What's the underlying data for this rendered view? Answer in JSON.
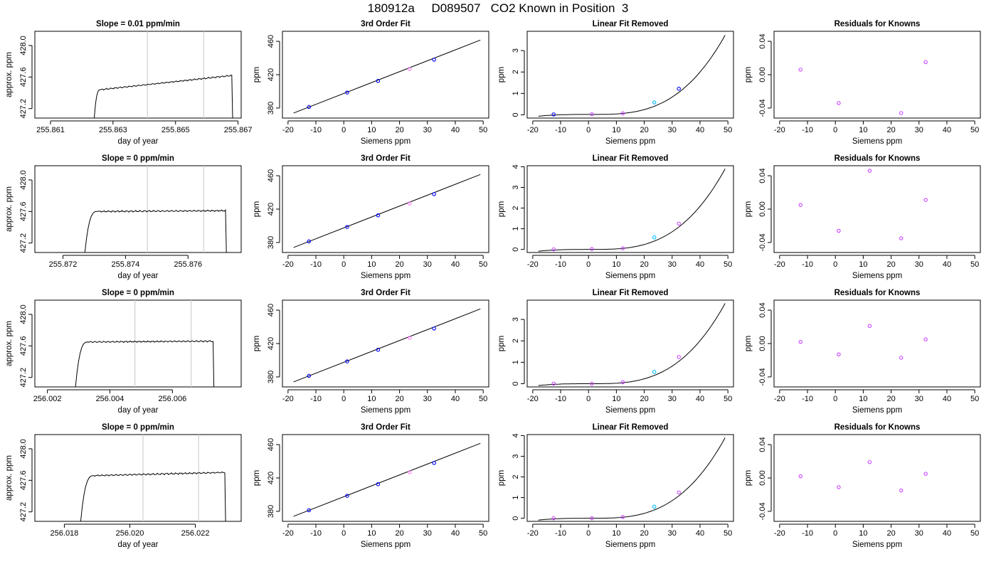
{
  "title": "180912a     D089507   CO2 Known in Position  3",
  "colors": {
    "trace": "#000000",
    "refline": "#cfcfcf",
    "point_main": "#0000ff",
    "point_alt": "#cc44ff",
    "point_pink": "#ff77ff",
    "point_cyan": "#00bbff"
  },
  "chart_data": [
    {
      "row": 1,
      "panel": "timeseries",
      "type": "line",
      "title": "Slope =  0.01  ppm/min",
      "xlabel": "day of year",
      "ylabel": "approx. ppm",
      "xlim": [
        255.8605,
        255.8671
      ],
      "ylim": [
        427.08,
        428.18
      ],
      "xticks": [
        255.861,
        255.863,
        255.865,
        255.867
      ],
      "xtick_labels": [
        "255.861",
        "255.863",
        "255.865",
        "255.867"
      ],
      "yticks": [
        427.2,
        427.6,
        428.0
      ],
      "ytick_labels": [
        "427.2",
        "427.6",
        "428.0"
      ],
      "vlines": [
        255.8641,
        255.8659
      ],
      "x_start": 255.8624,
      "x_plateau": 255.8626,
      "x_end": 255.8668,
      "plateau_start": 427.44,
      "plateau_end": 427.62,
      "plateau_noise": 0.01,
      "start_value": 427.08,
      "end_value": 427.08
    },
    {
      "row": 1,
      "panel": "fit",
      "type": "scatter",
      "title": "3rd Order Fit",
      "xlabel": "Siemens ppm",
      "ylabel": "ppm",
      "xlim": [
        -22,
        52
      ],
      "ylim": [
        368,
        472
      ],
      "xticks": [
        -20,
        -10,
        0,
        10,
        20,
        30,
        40,
        50
      ],
      "xtick_labels": [
        "-20",
        "-10",
        "0",
        "10",
        "20",
        "30",
        "40",
        "50"
      ],
      "yticks": [
        380,
        420,
        460
      ],
      "ytick_labels": [
        "380",
        "420",
        "460"
      ],
      "x": [
        -12.5,
        1.2,
        12.3,
        23.6,
        32.4
      ],
      "y": [
        381.3,
        398.6,
        412.5,
        426.9,
        438.0
      ],
      "point_colors": [
        "#0000ff",
        "#0000ff",
        "#0000ff",
        "#ff77ff",
        "#0000ff"
      ],
      "fit_line": {
        "x": [
          -18,
          49
        ],
        "y": [
          374.0,
          461.5
        ]
      }
    },
    {
      "row": 1,
      "panel": "linear_removed",
      "type": "scatter",
      "title": "Linear Fit Removed",
      "xlabel": "Siemens ppm",
      "ylabel": "ppm",
      "xlim": [
        -22,
        52
      ],
      "ylim": [
        -0.15,
        3.9
      ],
      "xticks": [
        -20,
        -10,
        0,
        10,
        20,
        30,
        40,
        50
      ],
      "xtick_labels": [
        "-20",
        "-10",
        "0",
        "10",
        "20",
        "30",
        "40",
        "50"
      ],
      "yticks": [
        0,
        1,
        2,
        3
      ],
      "ytick_labels": [
        "0",
        "1",
        "2",
        "3"
      ],
      "x": [
        -12.5,
        1.2,
        12.3,
        23.6,
        32.4
      ],
      "y": [
        0.02,
        0.03,
        0.07,
        0.58,
        1.22
      ],
      "point_colors": [
        "#0000ff",
        "#cc44ff",
        "#cc44ff",
        "#00bbff",
        "#0000ff"
      ],
      "curve": {
        "x_from": -18,
        "x_to": 49,
        "x_min": 1.2,
        "y_min": 0.02,
        "y_end": 3.72
      }
    },
    {
      "row": 1,
      "panel": "residuals",
      "type": "scatter",
      "title": "Residuals for Knowns",
      "xlabel": "Siemens ppm",
      "ylabel": "ppm",
      "xlim": [
        -22,
        52
      ],
      "ylim": [
        -0.052,
        0.052
      ],
      "xticks": [
        -20,
        -10,
        0,
        10,
        20,
        30,
        40,
        50
      ],
      "xtick_labels": [
        "-20",
        "-10",
        "0",
        "10",
        "20",
        "30",
        "40",
        "50"
      ],
      "yticks": [
        -0.04,
        0.0,
        0.04
      ],
      "ytick_labels": [
        "-0.04",
        "0.00",
        "0.04"
      ],
      "x": [
        -12.5,
        1.2,
        23.6,
        32.4
      ],
      "y": [
        0.006,
        -0.034,
        -0.046,
        0.015
      ],
      "point_colors": [
        "#cc44ff",
        "#cc44ff",
        "#cc44ff",
        "#cc44ff"
      ]
    },
    {
      "row": 2,
      "panel": "timeseries",
      "type": "line",
      "title": "Slope =  0  ppm/min",
      "xlabel": "day of year",
      "ylabel": "approx. ppm",
      "xlim": [
        255.8711,
        255.8777
      ],
      "ylim": [
        427.08,
        428.18
      ],
      "xticks": [
        255.872,
        255.874,
        255.876
      ],
      "xtick_labels": [
        "255.872",
        "255.874",
        "255.876"
      ],
      "yticks": [
        427.2,
        427.6,
        428.0
      ],
      "ytick_labels": [
        "427.2",
        "427.6",
        "428.0"
      ],
      "vlines": [
        255.8747,
        255.8765
      ],
      "x_start": 255.8727,
      "x_plateau": 255.8731,
      "x_end": 255.8772,
      "plateau_start": 427.6,
      "plateau_end": 427.61,
      "plateau_noise": 0.012,
      "start_value": 427.08,
      "end_value": 427.08
    },
    {
      "row": 2,
      "panel": "fit",
      "type": "scatter",
      "title": "3rd Order Fit",
      "xlabel": "Siemens ppm",
      "ylabel": "ppm",
      "xlim": [
        -22,
        52
      ],
      "ylim": [
        368,
        472
      ],
      "xticks": [
        -20,
        -10,
        0,
        10,
        20,
        30,
        40,
        50
      ],
      "xtick_labels": [
        "-20",
        "-10",
        "0",
        "10",
        "20",
        "30",
        "40",
        "50"
      ],
      "yticks": [
        380,
        420,
        460
      ],
      "ytick_labels": [
        "380",
        "420",
        "460"
      ],
      "x": [
        -12.5,
        1.2,
        12.3,
        23.6,
        32.4
      ],
      "y": [
        381.3,
        398.6,
        412.5,
        426.9,
        438.0
      ],
      "point_colors": [
        "#0000ff",
        "#0000ff",
        "#0000ff",
        "#ff77ff",
        "#0000ff"
      ],
      "fit_line": {
        "x": [
          -18,
          49
        ],
        "y": [
          374.0,
          461.5
        ]
      }
    },
    {
      "row": 2,
      "panel": "linear_removed",
      "type": "scatter",
      "title": "Linear Fit Removed",
      "xlabel": "Siemens ppm",
      "ylabel": "ppm",
      "xlim": [
        -22,
        52
      ],
      "ylim": [
        -0.15,
        4.05
      ],
      "xticks": [
        -20,
        -10,
        0,
        10,
        20,
        30,
        40,
        50
      ],
      "xtick_labels": [
        "-20",
        "-10",
        "0",
        "10",
        "20",
        "30",
        "40",
        "50"
      ],
      "yticks": [
        0,
        1,
        2,
        3,
        4
      ],
      "ytick_labels": [
        "0",
        "1",
        "2",
        "3",
        "4"
      ],
      "x": [
        -12.5,
        1.2,
        12.3,
        23.6,
        32.4
      ],
      "y": [
        0.0,
        0.02,
        0.05,
        0.58,
        1.25
      ],
      "point_colors": [
        "#cc44ff",
        "#cc44ff",
        "#cc44ff",
        "#00bbff",
        "#cc44ff"
      ],
      "curve": {
        "x_from": -18,
        "x_to": 49,
        "x_min": 1.2,
        "y_min": 0.0,
        "y_end": 3.9
      }
    },
    {
      "row": 2,
      "panel": "residuals",
      "type": "scatter",
      "title": "Residuals for Knowns",
      "xlabel": "Siemens ppm",
      "ylabel": "ppm",
      "xlim": [
        -22,
        52
      ],
      "ylim": [
        -0.052,
        0.052
      ],
      "xticks": [
        -20,
        -10,
        0,
        10,
        20,
        30,
        40,
        50
      ],
      "xtick_labels": [
        "-20",
        "-10",
        "0",
        "10",
        "20",
        "30",
        "40",
        "50"
      ],
      "yticks": [
        -0.04,
        0.0,
        0.04
      ],
      "ytick_labels": [
        "-0.04",
        "0.00",
        "0.04"
      ],
      "x": [
        -12.5,
        1.2,
        12.3,
        23.6,
        32.4
      ],
      "y": [
        0.005,
        -0.026,
        0.046,
        -0.035,
        0.011
      ],
      "point_colors": [
        "#cc44ff",
        "#cc44ff",
        "#cc44ff",
        "#cc44ff",
        "#cc44ff"
      ]
    },
    {
      "row": 3,
      "panel": "timeseries",
      "type": "line",
      "title": "Slope =  0  ppm/min",
      "xlabel": "day of year",
      "ylabel": "approx. ppm",
      "xlim": [
        256.0016,
        256.0082
      ],
      "ylim": [
        427.08,
        428.18
      ],
      "xticks": [
        256.002,
        256.004,
        256.006
      ],
      "xtick_labels": [
        "256.002",
        "256.004",
        "256.006"
      ],
      "yticks": [
        427.2,
        427.6,
        428.0
      ],
      "ytick_labels": [
        "427.2",
        "427.6",
        "428.0"
      ],
      "vlines": [
        256.0048,
        256.0066
      ],
      "x_start": 256.0029,
      "x_plateau": 256.0033,
      "x_end": 256.0073,
      "plateau_start": 427.65,
      "plateau_end": 427.66,
      "plateau_noise": 0.012,
      "start_value": 427.08,
      "end_value": 427.08
    },
    {
      "row": 3,
      "panel": "fit",
      "type": "scatter",
      "title": "3rd Order Fit",
      "xlabel": "Siemens ppm",
      "ylabel": "ppm",
      "xlim": [
        -22,
        52
      ],
      "ylim": [
        368,
        472
      ],
      "xticks": [
        -20,
        -10,
        0,
        10,
        20,
        30,
        40,
        50
      ],
      "xtick_labels": [
        "-20",
        "-10",
        "0",
        "10",
        "20",
        "30",
        "40",
        "50"
      ],
      "yticks": [
        380,
        420,
        460
      ],
      "ytick_labels": [
        "380",
        "420",
        "460"
      ],
      "x": [
        -12.5,
        1.2,
        12.3,
        23.6,
        32.4
      ],
      "y": [
        381.3,
        398.6,
        412.5,
        426.9,
        438.0
      ],
      "point_colors": [
        "#0000ff",
        "#0000ff",
        "#0000ff",
        "#ff77ff",
        "#0000ff"
      ],
      "fit_line": {
        "x": [
          -18,
          49
        ],
        "y": [
          374.0,
          461.5
        ]
      }
    },
    {
      "row": 3,
      "panel": "linear_removed",
      "type": "scatter",
      "title": "Linear Fit Removed",
      "xlabel": "Siemens ppm",
      "ylabel": "ppm",
      "xlim": [
        -22,
        52
      ],
      "ylim": [
        -0.15,
        3.9
      ],
      "xticks": [
        -20,
        -10,
        0,
        10,
        20,
        30,
        40,
        50
      ],
      "xtick_labels": [
        "-20",
        "-10",
        "0",
        "10",
        "20",
        "30",
        "40",
        "50"
      ],
      "yticks": [
        0,
        1,
        2,
        3
      ],
      "ytick_labels": [
        "0",
        "1",
        "2",
        "3"
      ],
      "x": [
        -12.5,
        1.2,
        12.3,
        23.6,
        32.4
      ],
      "y": [
        0.0,
        0.0,
        0.07,
        0.55,
        1.25
      ],
      "point_colors": [
        "#cc44ff",
        "#cc44ff",
        "#cc44ff",
        "#00bbff",
        "#cc44ff"
      ],
      "curve": {
        "x_from": -18,
        "x_to": 49,
        "x_min": 1.2,
        "y_min": 0.0,
        "y_end": 3.75
      }
    },
    {
      "row": 3,
      "panel": "residuals",
      "type": "scatter",
      "title": "Residuals for Knowns",
      "xlabel": "Siemens ppm",
      "ylabel": "ppm",
      "xlim": [
        -22,
        52
      ],
      "ylim": [
        -0.052,
        0.052
      ],
      "xticks": [
        -20,
        -10,
        0,
        10,
        20,
        30,
        40,
        50
      ],
      "xtick_labels": [
        "-20",
        "-10",
        "0",
        "10",
        "20",
        "30",
        "40",
        "50"
      ],
      "yticks": [
        -0.04,
        0.0,
        0.04
      ],
      "ytick_labels": [
        "-0.04",
        "0.00",
        "0.04"
      ],
      "x": [
        -12.5,
        1.2,
        12.3,
        23.6,
        32.4
      ],
      "y": [
        0.002,
        -0.013,
        0.021,
        -0.017,
        0.005
      ],
      "point_colors": [
        "#cc44ff",
        "#cc44ff",
        "#cc44ff",
        "#cc44ff",
        "#cc44ff"
      ]
    },
    {
      "row": 4,
      "panel": "timeseries",
      "type": "line",
      "title": "Slope =  0  ppm/min",
      "xlabel": "day of year",
      "ylabel": "approx. ppm",
      "xlim": [
        256.0171,
        256.0234
      ],
      "ylim": [
        427.08,
        428.18
      ],
      "xticks": [
        256.018,
        256.02,
        256.022
      ],
      "xtick_labels": [
        "256.018",
        "256.020",
        "256.022"
      ],
      "yticks": [
        427.2,
        427.6,
        428.0
      ],
      "ytick_labels": [
        "427.2",
        "427.6",
        "428.0"
      ],
      "vlines": [
        256.0204,
        256.0221
      ],
      "x_start": 256.0185,
      "x_plateau": 256.0189,
      "x_end": 256.0229,
      "plateau_start": 427.66,
      "plateau_end": 427.7,
      "plateau_noise": 0.012,
      "start_value": 427.08,
      "end_value": 427.08
    },
    {
      "row": 4,
      "panel": "fit",
      "type": "scatter",
      "title": "3rd Order Fit",
      "xlabel": "Siemens ppm",
      "ylabel": "ppm",
      "xlim": [
        -22,
        52
      ],
      "ylim": [
        368,
        472
      ],
      "xticks": [
        -20,
        -10,
        0,
        10,
        20,
        30,
        40,
        50
      ],
      "xtick_labels": [
        "-20",
        "-10",
        "0",
        "10",
        "20",
        "30",
        "40",
        "50"
      ],
      "yticks": [
        380,
        420,
        460
      ],
      "ytick_labels": [
        "380",
        "420",
        "460"
      ],
      "x": [
        -12.5,
        1.2,
        12.3,
        23.6,
        32.4
      ],
      "y": [
        381.3,
        398.6,
        412.5,
        426.9,
        438.0
      ],
      "point_colors": [
        "#0000ff",
        "#0000ff",
        "#0000ff",
        "#ff77ff",
        "#0000ff"
      ],
      "fit_line": {
        "x": [
          -18,
          49
        ],
        "y": [
          374.0,
          461.5
        ]
      }
    },
    {
      "row": 4,
      "panel": "linear_removed",
      "type": "scatter",
      "title": "Linear Fit Removed",
      "xlabel": "Siemens ppm",
      "ylabel": "ppm",
      "xlim": [
        -22,
        52
      ],
      "ylim": [
        -0.15,
        4.05
      ],
      "xticks": [
        -20,
        -10,
        0,
        10,
        20,
        30,
        40,
        50
      ],
      "xtick_labels": [
        "-20",
        "-10",
        "0",
        "10",
        "20",
        "30",
        "40",
        "50"
      ],
      "yticks": [
        0,
        1,
        2,
        3,
        4
      ],
      "ytick_labels": [
        "0",
        "1",
        "2",
        "3",
        "4"
      ],
      "x": [
        -12.5,
        1.2,
        12.3,
        23.6,
        32.4
      ],
      "y": [
        0.0,
        0.0,
        0.06,
        0.56,
        1.25
      ],
      "point_colors": [
        "#cc44ff",
        "#cc44ff",
        "#cc44ff",
        "#00bbff",
        "#cc44ff"
      ],
      "curve": {
        "x_from": -18,
        "x_to": 49,
        "x_min": 1.2,
        "y_min": 0.0,
        "y_end": 3.9
      }
    },
    {
      "row": 4,
      "panel": "residuals",
      "type": "scatter",
      "title": "Residuals for Knowns",
      "xlabel": "Siemens ppm",
      "ylabel": "ppm",
      "xlim": [
        -22,
        52
      ],
      "ylim": [
        -0.052,
        0.052
      ],
      "xticks": [
        -20,
        -10,
        0,
        10,
        20,
        30,
        40,
        50
      ],
      "xtick_labels": [
        "-20",
        "-10",
        "0",
        "10",
        "20",
        "30",
        "40",
        "50"
      ],
      "yticks": [
        -0.04,
        0.0,
        0.04
      ],
      "ytick_labels": [
        "-0.04",
        "0.00",
        "0.04"
      ],
      "x": [
        -12.5,
        1.2,
        12.3,
        23.6,
        32.4
      ],
      "y": [
        0.002,
        -0.011,
        0.019,
        -0.015,
        0.005
      ],
      "point_colors": [
        "#cc44ff",
        "#cc44ff",
        "#cc44ff",
        "#cc44ff",
        "#cc44ff"
      ]
    }
  ]
}
